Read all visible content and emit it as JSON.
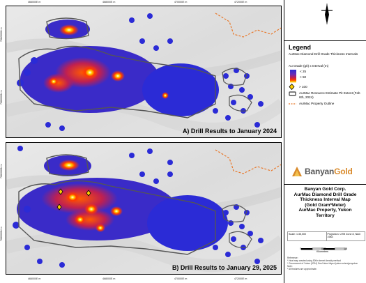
{
  "map": {
    "panels": [
      {
        "label": "A) Drill Results to January 2024"
      },
      {
        "label": "B) Drill Results to January 29, 2025"
      }
    ],
    "x_ticks": [
      "466000E m",
      "468000E m",
      "470000E m",
      "472000E m"
    ],
    "y_ticks": [
      "7080000N m",
      "7082000N m"
    ],
    "colors": {
      "low": "#2b2bd6",
      "mid": "#c02050",
      "high": "#ff3a00",
      "peak": "#ffd000",
      "pit_outline": "#555555",
      "property_outline": "#e8782a"
    }
  },
  "legend": {
    "title": "Legend",
    "subtitle": "AurMac Diamond Drill Grade Thickness Intervals",
    "units": "Au Grade (g/t) x Interval (m)",
    "ramp_low": "< 25",
    "ramp_high": "> 50",
    "highlight_label": "> 100",
    "pit_label": "AurMac Resource Estimate Pit Extent (Feb 6th, 2024)",
    "property_label": "AurMac Property Outline"
  },
  "brand": {
    "name_part1": "Banyan",
    "name_part2": "Gold"
  },
  "title_block": {
    "line1": "Banyan Gold Corp.",
    "line2": "AurMac Diamond Drill Grade",
    "line3": "Thickness Interval Map",
    "line4": "(Gold Gram*Meter)",
    "line5": "AurMac Property, Yukon",
    "line6": "Territory"
  },
  "info": {
    "scale": "Scale: 1:35,000",
    "projection": "Projection: UTM Zone 8, NAD 1983"
  },
  "scale_bar": {
    "labels": [
      "0",
      "0.75",
      "1.5"
    ],
    "unit": "Kilometers"
  },
  "references": {
    "heading": "Reference:",
    "line1": "* Heat map created using 500m kernel density method",
    "line2": "* Government of Yukon (2024) GeoYukon https://yukon.ca/en/geoyukon",
    "line3": "Note:",
    "line4": "* All features are approximate."
  }
}
